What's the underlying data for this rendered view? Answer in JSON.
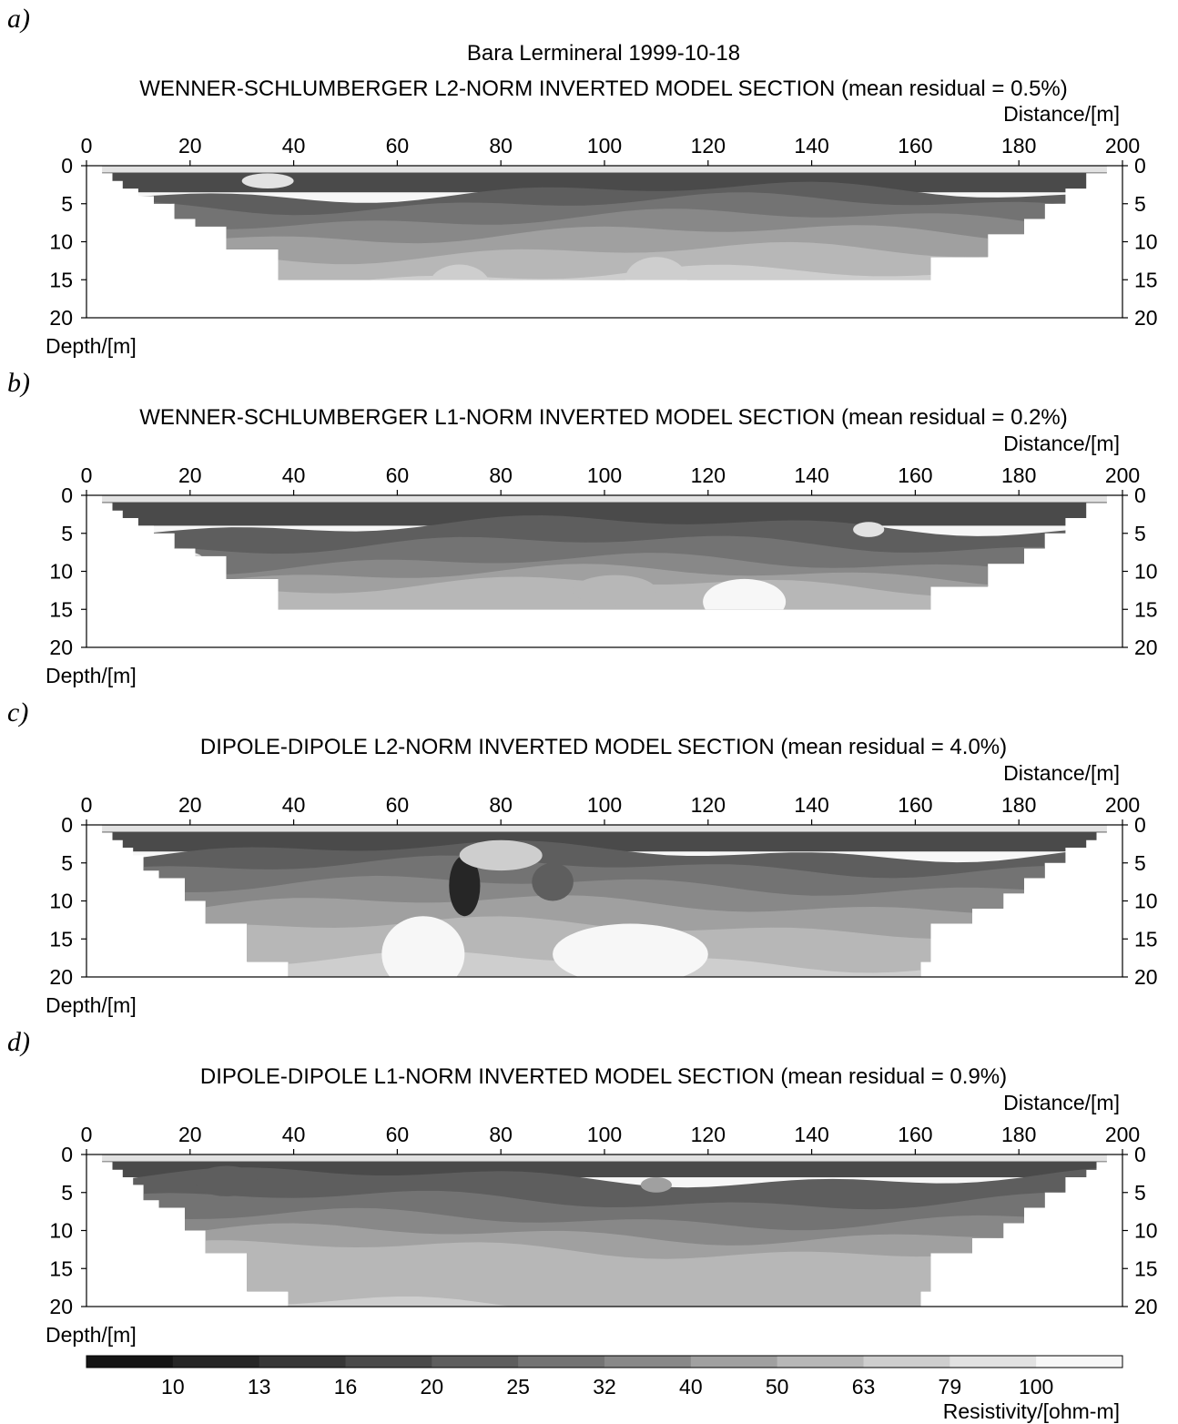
{
  "figure_title": "Bara Lermineral 1999-10-18",
  "colors": {
    "scale": [
      "#151515",
      "#262626",
      "#373737",
      "#4a4a4a",
      "#5e5e5e",
      "#737373",
      "#888888",
      "#a0a0a0",
      "#b7b7b7",
      "#cecece",
      "#e2e2e2",
      "#f7f7f7"
    ],
    "frame": "#000000"
  },
  "chart_data": [
    {
      "type": "heatmap",
      "panel": "a)",
      "title": "WENNER-SCHLUMBERGER L2-NORM INVERTED MODEL SECTION (mean residual = 0.5%)",
      "xlabel": "Distance/[m]",
      "ylabel": "Depth/[m]",
      "xlim": [
        0,
        200
      ],
      "ylim": [
        0,
        20
      ],
      "x_ticks": [
        0,
        20,
        40,
        60,
        80,
        100,
        120,
        140,
        160,
        180,
        200
      ],
      "y_ticks": [
        0,
        5,
        10,
        15,
        20
      ],
      "coverage_depth_left": [
        [
          3,
          1
        ],
        [
          5,
          2
        ],
        [
          7,
          3
        ],
        [
          10,
          4
        ],
        [
          13,
          5
        ],
        [
          17,
          7
        ],
        [
          21,
          8
        ],
        [
          27,
          11
        ],
        [
          37,
          15
        ]
      ],
      "coverage_depth_right": [
        [
          197,
          1
        ],
        [
          193,
          3
        ],
        [
          189,
          5
        ],
        [
          185,
          7
        ],
        [
          181,
          9
        ],
        [
          174,
          12
        ],
        [
          163,
          15
        ]
      ],
      "layer_depths": [
        1.5,
        3.5,
        5.0,
        7.0,
        9.0,
        11.5,
        14.5,
        18.0
      ],
      "anomalies": [
        {
          "x": 72,
          "depth": 16,
          "rx": 6,
          "rz": 3,
          "value": 63
        },
        {
          "x": 110,
          "depth": 15,
          "rx": 6,
          "rz": 3,
          "value": 63
        },
        {
          "x": 35,
          "depth": 2,
          "rx": 5,
          "rz": 1,
          "value": 79
        },
        {
          "x": 125,
          "depth": 19.5,
          "rx": 8,
          "rz": 1,
          "value": 100
        }
      ]
    },
    {
      "type": "heatmap",
      "panel": "b)",
      "title": "WENNER-SCHLUMBERGER L1-NORM INVERTED MODEL SECTION (mean residual = 0.2%)",
      "xlabel": "Distance/[m]",
      "ylabel": "Depth/[m]",
      "xlim": [
        0,
        200
      ],
      "ylim": [
        0,
        20
      ],
      "x_ticks": [
        0,
        20,
        40,
        60,
        80,
        100,
        120,
        140,
        160,
        180,
        200
      ],
      "y_ticks": [
        0,
        5,
        10,
        15,
        20
      ],
      "coverage_depth_left": [
        [
          3,
          1
        ],
        [
          5,
          2
        ],
        [
          7,
          3
        ],
        [
          10,
          4
        ],
        [
          13,
          5
        ],
        [
          17,
          7
        ],
        [
          21,
          8
        ],
        [
          27,
          11
        ],
        [
          37,
          15
        ]
      ],
      "coverage_depth_right": [
        [
          197,
          1
        ],
        [
          193,
          3
        ],
        [
          189,
          5
        ],
        [
          185,
          7
        ],
        [
          181,
          9
        ],
        [
          174,
          12
        ],
        [
          163,
          15
        ]
      ],
      "layer_depths": [
        1.5,
        4.0,
        6.5,
        9.0,
        10.5,
        12.0,
        20.0
      ],
      "anomalies": [
        {
          "x": 127,
          "depth": 14,
          "rx": 8,
          "rz": 3,
          "value": 100
        },
        {
          "x": 151,
          "depth": 4.5,
          "rx": 3,
          "rz": 1,
          "value": 79
        },
        {
          "x": 102,
          "depth": 12.5,
          "rx": 8,
          "rz": 2,
          "value": 50
        },
        {
          "x": 20,
          "depth": 9,
          "rx": 3,
          "rz": 1.5,
          "value": 79
        }
      ]
    },
    {
      "type": "heatmap",
      "panel": "c)",
      "title": "DIPOLE-DIPOLE L2-NORM INVERTED MODEL SECTION (mean residual = 4.0%)",
      "xlabel": "Distance/[m]",
      "ylabel": "Depth/[m]",
      "xlim": [
        0,
        200
      ],
      "ylim": [
        0,
        20
      ],
      "x_ticks": [
        0,
        20,
        40,
        60,
        80,
        100,
        120,
        140,
        160,
        180,
        200
      ],
      "y_ticks": [
        0,
        5,
        10,
        15,
        20
      ],
      "coverage_depth_left": [
        [
          3,
          1
        ],
        [
          5,
          2
        ],
        [
          7,
          3
        ],
        [
          9,
          4
        ],
        [
          11,
          6
        ],
        [
          14,
          7
        ],
        [
          19,
          10
        ],
        [
          23,
          13
        ],
        [
          31,
          18
        ],
        [
          39,
          20
        ]
      ],
      "coverage_depth_right": [
        [
          197,
          1
        ],
        [
          195,
          2
        ],
        [
          193,
          3
        ],
        [
          189,
          5
        ],
        [
          185,
          7
        ],
        [
          181,
          9
        ],
        [
          177,
          11
        ],
        [
          171,
          13
        ],
        [
          163,
          18
        ],
        [
          161,
          20
        ]
      ],
      "layer_depths": [
        1.5,
        3.5,
        5.5,
        8.0,
        10.5,
        13.5,
        18.0
      ],
      "anomalies": [
        {
          "x": 73,
          "depth": 8,
          "rx": 3,
          "rz": 4,
          "value": 10
        },
        {
          "x": 90,
          "depth": 7.5,
          "rx": 4,
          "rz": 2.5,
          "value": 20
        },
        {
          "x": 65,
          "depth": 17,
          "rx": 8,
          "rz": 5,
          "value": 100
        },
        {
          "x": 105,
          "depth": 17,
          "rx": 15,
          "rz": 4,
          "value": 100
        },
        {
          "x": 80,
          "depth": 4,
          "rx": 8,
          "rz": 2,
          "value": 63
        }
      ]
    },
    {
      "type": "heatmap",
      "panel": "d)",
      "title": "DIPOLE-DIPOLE L1-NORM INVERTED MODEL SECTION (mean residual = 0.9%)",
      "xlabel": "Distance/[m]",
      "ylabel": "Depth/[m]",
      "xlim": [
        0,
        200
      ],
      "ylim": [
        0,
        20
      ],
      "x_ticks": [
        0,
        20,
        40,
        60,
        80,
        100,
        120,
        140,
        160,
        180,
        200
      ],
      "y_ticks": [
        0,
        5,
        10,
        15,
        20
      ],
      "coverage_depth_left": [
        [
          3,
          1
        ],
        [
          5,
          2
        ],
        [
          7,
          3
        ],
        [
          9,
          4
        ],
        [
          11,
          6
        ],
        [
          14,
          7
        ],
        [
          19,
          10
        ],
        [
          23,
          13
        ],
        [
          31,
          18
        ],
        [
          39,
          20
        ]
      ],
      "coverage_depth_right": [
        [
          197,
          1
        ],
        [
          195,
          2
        ],
        [
          193,
          3
        ],
        [
          189,
          5
        ],
        [
          185,
          7
        ],
        [
          181,
          9
        ],
        [
          177,
          11
        ],
        [
          171,
          13
        ],
        [
          163,
          18
        ],
        [
          161,
          20
        ]
      ],
      "layer_depths": [
        1.5,
        3.0,
        6.0,
        8.5,
        10.5,
        12.5,
        20.0
      ],
      "anomalies": [
        {
          "x": 27,
          "depth": 3.5,
          "rx": 6,
          "rz": 2,
          "value": 20
        },
        {
          "x": 110,
          "depth": 4,
          "rx": 3,
          "rz": 1,
          "value": 40
        }
      ]
    }
  ],
  "colorbar": {
    "label": "Resistivity/[ohm-m]",
    "ticks": [
      "10",
      "13",
      "16",
      "20",
      "25",
      "32",
      "40",
      "50",
      "63",
      "79",
      "100"
    ]
  }
}
